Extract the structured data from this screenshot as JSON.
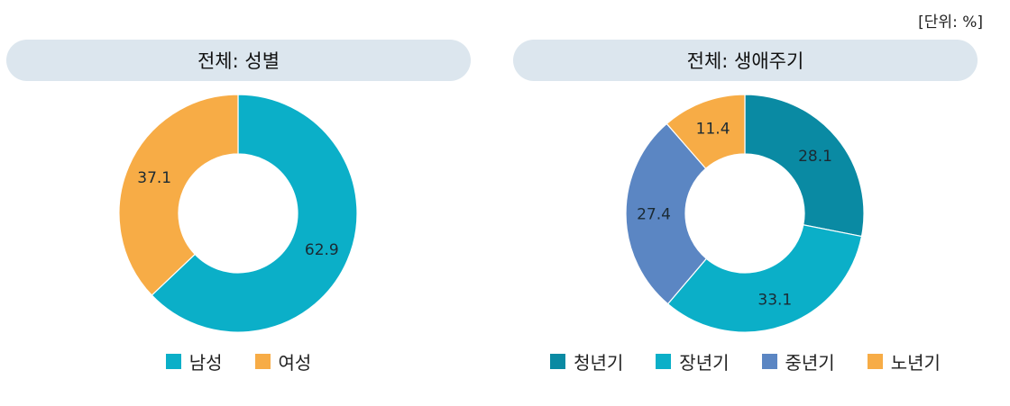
{
  "unit_label": "[단위: %]",
  "chart_data": [
    {
      "type": "pie",
      "donut": true,
      "title": "전체: 성별",
      "categories": [
        "남성",
        "여성"
      ],
      "values": [
        62.9,
        37.1
      ],
      "colors": [
        "#0bafc8",
        "#f7ac46"
      ],
      "legend": "bottom"
    },
    {
      "type": "pie",
      "donut": true,
      "title": "전체: 생애주기",
      "categories": [
        "청년기",
        "장년기",
        "중년기",
        "노년기"
      ],
      "values": [
        28.1,
        33.1,
        27.4,
        11.4
      ],
      "colors": [
        "#0a8aa3",
        "#0bafc8",
        "#5b86c3",
        "#f7ac46"
      ],
      "legend": "bottom"
    }
  ]
}
